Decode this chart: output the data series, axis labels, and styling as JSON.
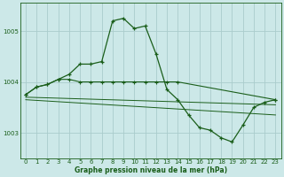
{
  "bg_color": "#cce8e8",
  "grid_color": "#aacccc",
  "line_color": "#1a5e1a",
  "text_color": "#1a5e1a",
  "xlabel": "Graphe pression niveau de la mer (hPa)",
  "ylim": [
    1002.5,
    1005.55
  ],
  "xlim": [
    -0.5,
    23.5
  ],
  "yticks": [
    1003,
    1004,
    1005
  ],
  "xticks": [
    0,
    1,
    2,
    3,
    4,
    5,
    6,
    7,
    8,
    9,
    10,
    11,
    12,
    13,
    14,
    15,
    16,
    17,
    18,
    19,
    20,
    21,
    22,
    23
  ],
  "series1_x": [
    0,
    1,
    2,
    3,
    4,
    5,
    6,
    7,
    8,
    9,
    10,
    11,
    12,
    13,
    14,
    15,
    16,
    17,
    18,
    19,
    20,
    21,
    22,
    23
  ],
  "series1_y": [
    1003.75,
    1003.9,
    1003.95,
    1004.05,
    1004.15,
    1004.35,
    1004.35,
    1004.4,
    1005.2,
    1005.25,
    1005.05,
    1005.1,
    1004.55,
    1003.85,
    1003.65,
    1003.35,
    1003.1,
    1003.05,
    1002.9,
    1002.82,
    1003.15,
    1003.5,
    1003.6,
    1003.65
  ],
  "series2_x": [
    0,
    1,
    2,
    3,
    4,
    5,
    6,
    7,
    8,
    9,
    10,
    11,
    12,
    13,
    14,
    23
  ],
  "series2_y": [
    1003.75,
    1003.9,
    1003.95,
    1004.05,
    1004.05,
    1004.0,
    1004.0,
    1004.0,
    1004.0,
    1004.0,
    1004.0,
    1004.0,
    1004.0,
    1004.0,
    1004.0,
    1003.65
  ],
  "series3_x": [
    0,
    23
  ],
  "series3_y": [
    1003.7,
    1003.55
  ],
  "series4_x": [
    0,
    23
  ],
  "series4_y": [
    1003.65,
    1003.35
  ]
}
